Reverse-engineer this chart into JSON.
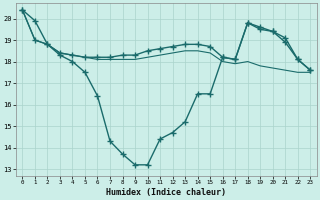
{
  "xlabel": "Humidex (Indice chaleur)",
  "background_color": "#cceee8",
  "grid_color": "#aad4cc",
  "line_color": "#1a6b6b",
  "xlim": [
    -0.5,
    23.5
  ],
  "ylim": [
    12.7,
    20.7
  ],
  "yticks": [
    13,
    14,
    15,
    16,
    17,
    18,
    19,
    20
  ],
  "xticks": [
    0,
    1,
    2,
    3,
    4,
    5,
    6,
    7,
    8,
    9,
    10,
    11,
    12,
    13,
    14,
    15,
    16,
    17,
    18,
    19,
    20,
    21,
    22,
    23
  ],
  "line1_x": [
    0,
    1,
    2,
    3,
    4,
    5,
    6,
    7,
    8,
    9,
    10,
    11,
    12,
    13,
    14,
    15,
    16,
    17,
    18,
    19,
    20,
    21,
    22,
    23
  ],
  "line1_y": [
    20.4,
    19.9,
    18.8,
    18.3,
    18.0,
    17.5,
    16.4,
    14.3,
    13.7,
    13.2,
    13.2,
    14.4,
    14.7,
    15.2,
    16.5,
    16.5,
    18.2,
    18.1,
    19.8,
    19.6,
    19.4,
    19.1,
    18.1,
    17.6
  ],
  "line2_x": [
    0,
    1,
    2,
    3,
    4,
    5,
    6,
    7,
    8,
    9,
    10,
    11,
    12,
    13,
    14,
    15,
    16,
    17,
    18,
    19,
    20,
    21,
    22,
    23
  ],
  "line2_y": [
    20.4,
    19.0,
    18.8,
    18.4,
    18.3,
    18.2,
    18.2,
    18.2,
    18.3,
    18.3,
    18.5,
    18.6,
    18.7,
    18.8,
    18.8,
    18.7,
    18.2,
    18.1,
    19.8,
    19.5,
    19.4,
    18.9,
    18.1,
    17.6
  ],
  "line3_x": [
    0,
    1,
    2,
    3,
    4,
    5,
    6,
    7,
    8,
    9,
    10,
    11,
    12,
    13,
    14,
    15,
    16,
    17,
    18,
    19,
    20,
    21,
    22,
    23
  ],
  "line3_y": [
    20.4,
    19.0,
    18.8,
    18.4,
    18.3,
    18.2,
    18.1,
    18.1,
    18.1,
    18.1,
    18.2,
    18.3,
    18.4,
    18.5,
    18.5,
    18.4,
    18.0,
    17.9,
    18.0,
    17.8,
    17.7,
    17.6,
    17.5,
    17.5
  ],
  "marker": "+",
  "markersize": 4,
  "linewidth": 1.0
}
